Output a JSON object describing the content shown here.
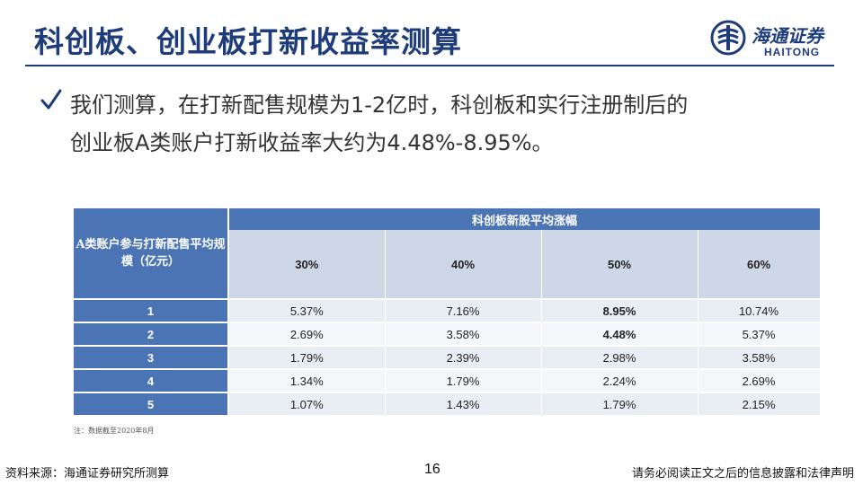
{
  "title": "科创板、创业板打新收益率测算",
  "logo": {
    "name_cn": "海通证券",
    "name_en": "HAITONG",
    "brand_color": "#1f3c7a"
  },
  "bullet": {
    "icon": "check-icon",
    "lines": [
      "我们测算，在打新配售规模为1-2亿时，科创板和实行注册制后的",
      "创业板A类账户打新收益率大约为4.48%-8.95%。"
    ]
  },
  "table": {
    "corner_header": "A类账户参与打新配售平均规模（亿元）",
    "group_header": "科创板新股平均涨幅",
    "columns": [
      "30%",
      "40%",
      "50%",
      "60%"
    ],
    "rows": [
      {
        "label": "1",
        "values": [
          "5.37%",
          "7.16%",
          "8.95%",
          "10.74%"
        ],
        "bold_index": 2
      },
      {
        "label": "2",
        "values": [
          "2.69%",
          "3.58%",
          "4.48%",
          "5.37%"
        ],
        "bold_index": 2
      },
      {
        "label": "3",
        "values": [
          "1.79%",
          "2.39%",
          "2.98%",
          "3.58%"
        ],
        "bold_index": -1
      },
      {
        "label": "4",
        "values": [
          "1.34%",
          "1.79%",
          "2.24%",
          "2.69%"
        ],
        "bold_index": -1
      },
      {
        "label": "5",
        "values": [
          "1.07%",
          "1.43%",
          "1.79%",
          "2.15%"
        ],
        "bold_index": -1
      }
    ],
    "header_color": "#4a74b4",
    "subheader_color": "#cdd7e8"
  },
  "note": "注：数据截至2020年8月",
  "footer": {
    "source": "资料来源：海通证券研究所测算",
    "page_number": "16",
    "disclaimer": "请务必阅读正文之后的信息披露和法律声明"
  }
}
